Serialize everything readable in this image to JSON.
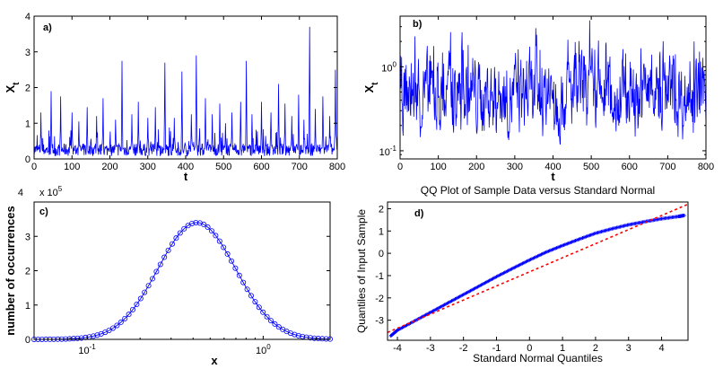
{
  "chart_data": [
    {
      "type": "line",
      "panel_label": "a)",
      "ylabel_main": "X",
      "ylabel_sub": "t",
      "xlabel": "t",
      "xlim": [
        0,
        800
      ],
      "ylim": [
        0,
        4
      ],
      "xticks": [
        "0",
        "100",
        "200",
        "300",
        "400",
        "500",
        "600",
        "700",
        "800"
      ],
      "yticks": [
        "0",
        "1",
        "2",
        "3",
        "4"
      ],
      "series": [
        {
          "name": "X_t",
          "color": "#0000ff",
          "peaks": [
            [
              18,
              1.3
            ],
            [
              45,
              1.9
            ],
            [
              70,
              1.75
            ],
            [
              100,
              1.3
            ],
            [
              118,
              1.05
            ],
            [
              140,
              1.45
            ],
            [
              165,
              1.2
            ],
            [
              182,
              1.7
            ],
            [
              215,
              1.1
            ],
            [
              232,
              2.75
            ],
            [
              258,
              1.25
            ],
            [
              275,
              1.6
            ],
            [
              300,
              1.15
            ],
            [
              320,
              1.45
            ],
            [
              345,
              2.7
            ],
            [
              370,
              1.15
            ],
            [
              390,
              2.45
            ],
            [
              415,
              1.25
            ],
            [
              428,
              2.9
            ],
            [
              452,
              1.7
            ],
            [
              470,
              1.25
            ],
            [
              490,
              1.55
            ],
            [
              505,
              1.0
            ],
            [
              522,
              1.3
            ],
            [
              545,
              1.6
            ],
            [
              560,
              2.75
            ],
            [
              575,
              1.25
            ],
            [
              600,
              1.6
            ],
            [
              625,
              1.3
            ],
            [
              645,
              2.1
            ],
            [
              662,
              1.55
            ],
            [
              680,
              1.2
            ],
            [
              698,
              1.8
            ],
            [
              712,
              1.1
            ],
            [
              727,
              3.7
            ],
            [
              742,
              1.4
            ],
            [
              762,
              1.75
            ],
            [
              780,
              1.2
            ],
            [
              795,
              2.5
            ]
          ],
          "baseline": 0.25
        }
      ]
    },
    {
      "type": "line",
      "panel_label": "b)",
      "ylabel_main": "X",
      "ylabel_sub": "t",
      "xlabel": "t",
      "xscale": "linear",
      "yscale": "log",
      "xlim": [
        0,
        800
      ],
      "ylim": [
        0.08,
        4
      ],
      "xticks": [
        "0",
        "100",
        "200",
        "300",
        "400",
        "500",
        "600",
        "700",
        "800"
      ],
      "yticks": [
        {
          "label": "10",
          "exp": "0",
          "value": 1
        },
        {
          "label": "10",
          "exp": "-1",
          "value": 0.1
        }
      ],
      "series": [
        {
          "name": "X_t",
          "color": "#0000ff"
        }
      ]
    },
    {
      "type": "line",
      "panel_label": "c)",
      "xlabel": "x",
      "ylabel": "number of occurrences",
      "xscale": "log",
      "xlim": [
        0.05,
        2.4
      ],
      "ylim": [
        0,
        400000
      ],
      "multiplier": {
        "label": "x 10",
        "exp": "5"
      },
      "yticks": [
        "0",
        "1",
        "2",
        "3",
        "4"
      ],
      "xticks": [
        {
          "label": "10",
          "exp": "-1",
          "value": 0.1
        },
        {
          "label": "10",
          "exp": "0",
          "value": 1
        }
      ],
      "series": [
        {
          "name": "histogram",
          "marker": "circle",
          "color": "#0000ff",
          "peak_x": 0.42,
          "peak_value": 340000,
          "log_sigma": 0.22
        }
      ]
    },
    {
      "type": "scatter",
      "panel_label": "d)",
      "title": "QQ Plot of Sample Data versus Standard Normal",
      "xlabel": "Standard Normal Quantiles",
      "ylabel": "Quantiles of Input Sample",
      "xlim": [
        -4.3,
        4.8
      ],
      "ylim": [
        -3.9,
        2.3
      ],
      "xticks": [
        "-4",
        "-3",
        "-2",
        "-1",
        "0",
        "1",
        "2",
        "3",
        "4"
      ],
      "yticks": [
        "-3",
        "-2",
        "-1",
        "0",
        "1",
        "2"
      ],
      "series": [
        {
          "name": "sample quantiles",
          "marker": "+",
          "color": "#0000ff",
          "points": [
            [
              -4.2,
              -3.7
            ],
            [
              -4.0,
              -3.45
            ],
            [
              -3.5,
              -3.05
            ],
            [
              -3.0,
              -2.65
            ],
            [
              -2.5,
              -2.25
            ],
            [
              -2.0,
              -1.85
            ],
            [
              -1.5,
              -1.45
            ],
            [
              -1.0,
              -1.05
            ],
            [
              -0.5,
              -0.67
            ],
            [
              0,
              -0.3
            ],
            [
              0.5,
              0.05
            ],
            [
              1.0,
              0.35
            ],
            [
              1.5,
              0.63
            ],
            [
              2.0,
              0.9
            ],
            [
              2.5,
              1.1
            ],
            [
              3.0,
              1.28
            ],
            [
              3.5,
              1.42
            ],
            [
              4.0,
              1.55
            ],
            [
              4.5,
              1.65
            ],
            [
              4.7,
              1.7
            ]
          ]
        },
        {
          "name": "reference line",
          "style": "dashed",
          "color": "#ff0000",
          "from": [
            -4.3,
            -3.55
          ],
          "to": [
            4.8,
            2.2
          ]
        }
      ]
    }
  ]
}
